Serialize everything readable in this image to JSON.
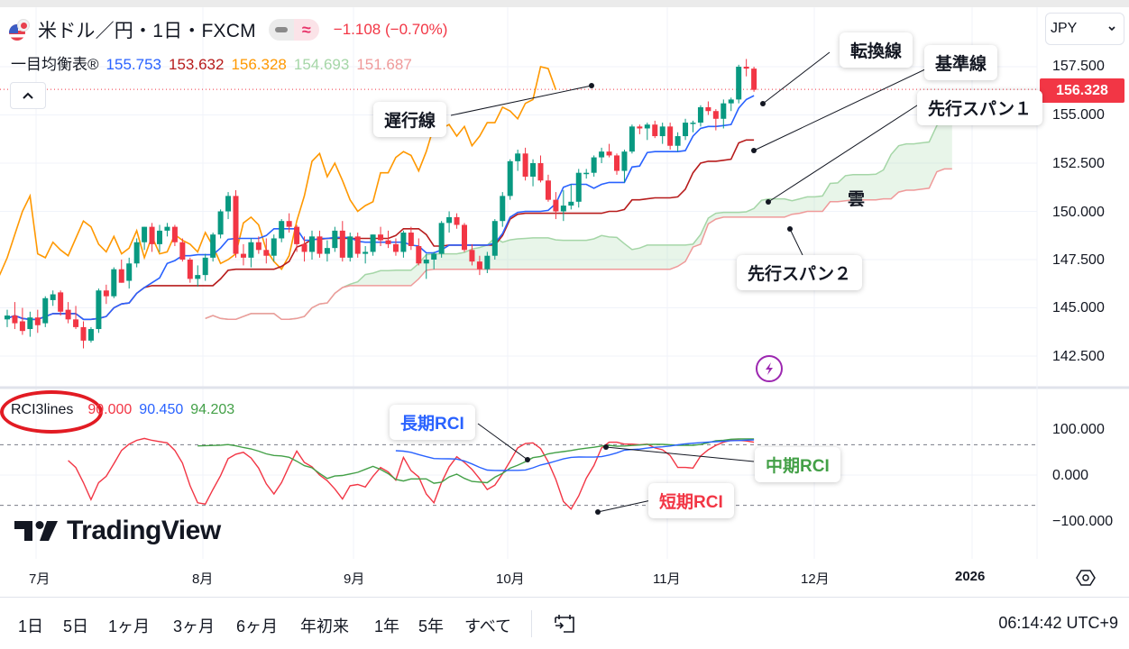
{
  "header": {
    "symbol": "米ドル／円・1日・FXCM",
    "change": "−1.108 (−0.70%)",
    "indicator_name": "一目均衡表®",
    "indicator_values": [
      {
        "label": "転換線",
        "value": "155.753",
        "color": "#2962ff"
      },
      {
        "label": "基準線",
        "value": "153.632",
        "color": "#b71c1c"
      },
      {
        "label": "遅行線",
        "value": "156.328",
        "color": "#ff9800"
      },
      {
        "label": "先行スパン1",
        "value": "154.693",
        "color": "#a5d6a7"
      },
      {
        "label": "先行スパン2",
        "value": "151.687",
        "color": "#ef9a9a"
      }
    ]
  },
  "currency_select": {
    "value": "JPY"
  },
  "price_axis": {
    "ticks": [
      "157.500",
      "155.000",
      "152.500",
      "150.000",
      "147.500",
      "145.000",
      "142.500"
    ],
    "last_price": "156.328",
    "last_price_color": "#f23645"
  },
  "annotations": {
    "chikou": "遅行線",
    "tenkan": "転換線",
    "kijun": "基準線",
    "span1": "先行スパン１",
    "span2": "先行スパン２",
    "cloud": "雲",
    "rci_long": "長期RCI",
    "rci_mid": "中期RCI",
    "rci_short": "短期RCI"
  },
  "rci": {
    "name": "RCI3lines",
    "values": [
      {
        "value": "90.000",
        "color": "#f23645"
      },
      {
        "value": "90.450",
        "color": "#2962ff"
      },
      {
        "value": "94.203",
        "color": "#43a047"
      }
    ],
    "ticks": [
      "100.000",
      "0.000",
      "−100.000"
    ]
  },
  "time_axis": {
    "labels": [
      "7月",
      "8月",
      "9月",
      "10月",
      "11月",
      "12月",
      "2026"
    ]
  },
  "bottom_bar": {
    "ranges": [
      "1日",
      "5日",
      "1ヶ月",
      "3ヶ月",
      "6ヶ月",
      "年初来",
      "1年",
      "5年",
      "すべて"
    ],
    "clock": "06:14:42 UTC+9"
  },
  "branding": {
    "logo_text": "TradingView"
  },
  "chart_data": {
    "type": "candlestick",
    "title": "米ドル／円・1日・FXCM 一目均衡表 + RCI3lines",
    "x_labels": [
      "7月",
      "8月",
      "9月",
      "10月",
      "11月",
      "12月",
      "2026"
    ],
    "y_range": [
      141.5,
      158.5
    ],
    "ohlc": [
      [
        144.4,
        144.9,
        144.0,
        144.6
      ],
      [
        144.6,
        145.3,
        143.9,
        144.2
      ],
      [
        144.3,
        145.0,
        143.6,
        143.8
      ],
      [
        143.9,
        144.8,
        143.5,
        144.5
      ],
      [
        144.5,
        144.9,
        143.7,
        144.1
      ],
      [
        144.2,
        145.6,
        144.0,
        145.5
      ],
      [
        145.4,
        145.9,
        145.1,
        145.7
      ],
      [
        145.8,
        145.9,
        144.6,
        144.8
      ],
      [
        144.9,
        145.3,
        144.2,
        144.4
      ],
      [
        144.4,
        145.1,
        143.9,
        144.0
      ],
      [
        144.0,
        144.3,
        142.9,
        143.3
      ],
      [
        143.3,
        144.0,
        143.2,
        143.9
      ],
      [
        143.9,
        146.0,
        143.7,
        145.9
      ],
      [
        145.9,
        146.2,
        145.2,
        145.6
      ],
      [
        145.6,
        147.1,
        145.5,
        147.0
      ],
      [
        147.0,
        147.5,
        146.3,
        146.3
      ],
      [
        146.4,
        147.6,
        146.0,
        147.3
      ],
      [
        147.3,
        148.6,
        147.1,
        148.4
      ],
      [
        148.4,
        149.2,
        148.0,
        149.2
      ],
      [
        149.2,
        149.4,
        147.9,
        148.3
      ],
      [
        148.3,
        149.3,
        147.9,
        149.0
      ],
      [
        149.0,
        149.4,
        148.7,
        149.2
      ],
      [
        149.2,
        149.3,
        148.2,
        148.4
      ],
      [
        148.4,
        148.6,
        147.4,
        147.5
      ],
      [
        147.5,
        147.6,
        146.3,
        146.5
      ],
      [
        146.5,
        147.2,
        146.1,
        146.7
      ],
      [
        146.7,
        147.8,
        146.4,
        147.6
      ],
      [
        147.6,
        148.9,
        147.4,
        148.8
      ],
      [
        148.8,
        150.1,
        148.6,
        150.0
      ],
      [
        150.0,
        151.0,
        149.6,
        150.8
      ],
      [
        150.8,
        151.1,
        147.6,
        147.8
      ],
      [
        147.8,
        148.3,
        147.2,
        147.6
      ],
      [
        147.6,
        148.6,
        147.1,
        148.4
      ],
      [
        148.4,
        148.7,
        147.8,
        148.0
      ],
      [
        148.0,
        148.6,
        147.3,
        147.7
      ],
      [
        147.7,
        148.8,
        147.4,
        148.6
      ],
      [
        148.6,
        149.6,
        148.4,
        149.5
      ],
      [
        149.5,
        149.9,
        148.9,
        149.2
      ],
      [
        149.2,
        149.3,
        147.9,
        148.3
      ],
      [
        148.3,
        148.7,
        147.4,
        147.9
      ],
      [
        147.9,
        149.0,
        147.5,
        148.7
      ],
      [
        148.7,
        149.0,
        147.6,
        147.8
      ],
      [
        147.8,
        148.5,
        147.4,
        148.1
      ],
      [
        148.1,
        149.2,
        147.9,
        149.0
      ],
      [
        149.0,
        149.5,
        147.4,
        147.6
      ],
      [
        147.6,
        148.9,
        147.4,
        148.7
      ],
      [
        148.7,
        148.9,
        147.6,
        147.8
      ],
      [
        147.8,
        148.2,
        147.3,
        147.9
      ],
      [
        147.9,
        148.8,
        147.7,
        148.8
      ],
      [
        148.8,
        149.2,
        148.2,
        148.5
      ],
      [
        148.5,
        149.0,
        148.1,
        148.3
      ],
      [
        148.3,
        148.6,
        147.7,
        147.9
      ],
      [
        147.9,
        149.0,
        147.6,
        148.9
      ],
      [
        148.9,
        149.2,
        148.0,
        148.2
      ],
      [
        148.2,
        148.6,
        147.2,
        147.3
      ],
      [
        147.3,
        147.8,
        146.5,
        147.5
      ],
      [
        147.5,
        147.9,
        147.0,
        147.8
      ],
      [
        147.8,
        149.5,
        147.6,
        149.4
      ],
      [
        149.4,
        150.0,
        148.9,
        149.7
      ],
      [
        149.7,
        149.9,
        149.1,
        149.3
      ],
      [
        149.3,
        149.4,
        147.9,
        148.0
      ],
      [
        148.0,
        148.3,
        147.2,
        147.4
      ],
      [
        147.4,
        147.7,
        146.7,
        147.0
      ],
      [
        147.0,
        147.9,
        146.8,
        147.7
      ],
      [
        147.7,
        149.6,
        147.5,
        149.5
      ],
      [
        149.5,
        151.0,
        149.2,
        150.8
      ],
      [
        150.8,
        152.7,
        150.6,
        152.6
      ],
      [
        152.6,
        153.2,
        152.1,
        153.0
      ],
      [
        153.0,
        153.3,
        151.6,
        151.8
      ],
      [
        151.8,
        152.7,
        151.3,
        152.5
      ],
      [
        152.5,
        152.9,
        151.5,
        151.6
      ],
      [
        151.6,
        151.9,
        150.5,
        150.6
      ],
      [
        150.6,
        151.0,
        149.6,
        150.0
      ],
      [
        150.0,
        151.1,
        149.5,
        150.3
      ],
      [
        150.3,
        151.4,
        150.1,
        150.5
      ],
      [
        150.5,
        152.2,
        150.2,
        152.0
      ],
      [
        152.0,
        152.2,
        151.7,
        152.0
      ],
      [
        152.0,
        152.9,
        151.8,
        152.8
      ],
      [
        152.8,
        153.3,
        152.5,
        153.1
      ],
      [
        153.1,
        153.5,
        152.8,
        152.9
      ],
      [
        152.9,
        153.0,
        151.9,
        152.1
      ],
      [
        152.1,
        153.2,
        151.5,
        153.1
      ],
      [
        153.1,
        154.5,
        153.0,
        154.4
      ],
      [
        154.4,
        154.5,
        154.0,
        154.3
      ],
      [
        154.3,
        154.6,
        153.7,
        154.5
      ],
      [
        154.5,
        154.7,
        153.8,
        153.9
      ],
      [
        153.9,
        154.6,
        153.5,
        154.4
      ],
      [
        154.4,
        154.6,
        153.2,
        153.4
      ],
      [
        153.4,
        154.1,
        153.1,
        153.9
      ],
      [
        153.9,
        154.8,
        153.7,
        154.6
      ],
      [
        154.6,
        154.7,
        154.1,
        154.6
      ],
      [
        154.6,
        155.5,
        154.4,
        155.4
      ],
      [
        155.4,
        155.7,
        155.0,
        155.2
      ],
      [
        155.2,
        155.3,
        154.2,
        154.8
      ],
      [
        154.8,
        155.8,
        154.3,
        155.6
      ],
      [
        155.6,
        155.9,
        155.2,
        155.8
      ],
      [
        155.8,
        157.6,
        155.6,
        157.5
      ],
      [
        157.5,
        157.9,
        157.0,
        157.4
      ],
      [
        157.4,
        157.5,
        156.2,
        156.3
      ]
    ],
    "tenkan_color": "#2962ff",
    "kijun_color": "#b71c1c",
    "chikou_color": "#ff9800",
    "span1_color": "#a5d6a7",
    "span2_color": "#ef9a9a",
    "rci": {
      "ylim": [
        -120,
        120
      ],
      "levels": [
        80,
        -80
      ],
      "short_color": "#f23645",
      "mid_color": "#43a047",
      "long_color": "#2962ff"
    }
  }
}
